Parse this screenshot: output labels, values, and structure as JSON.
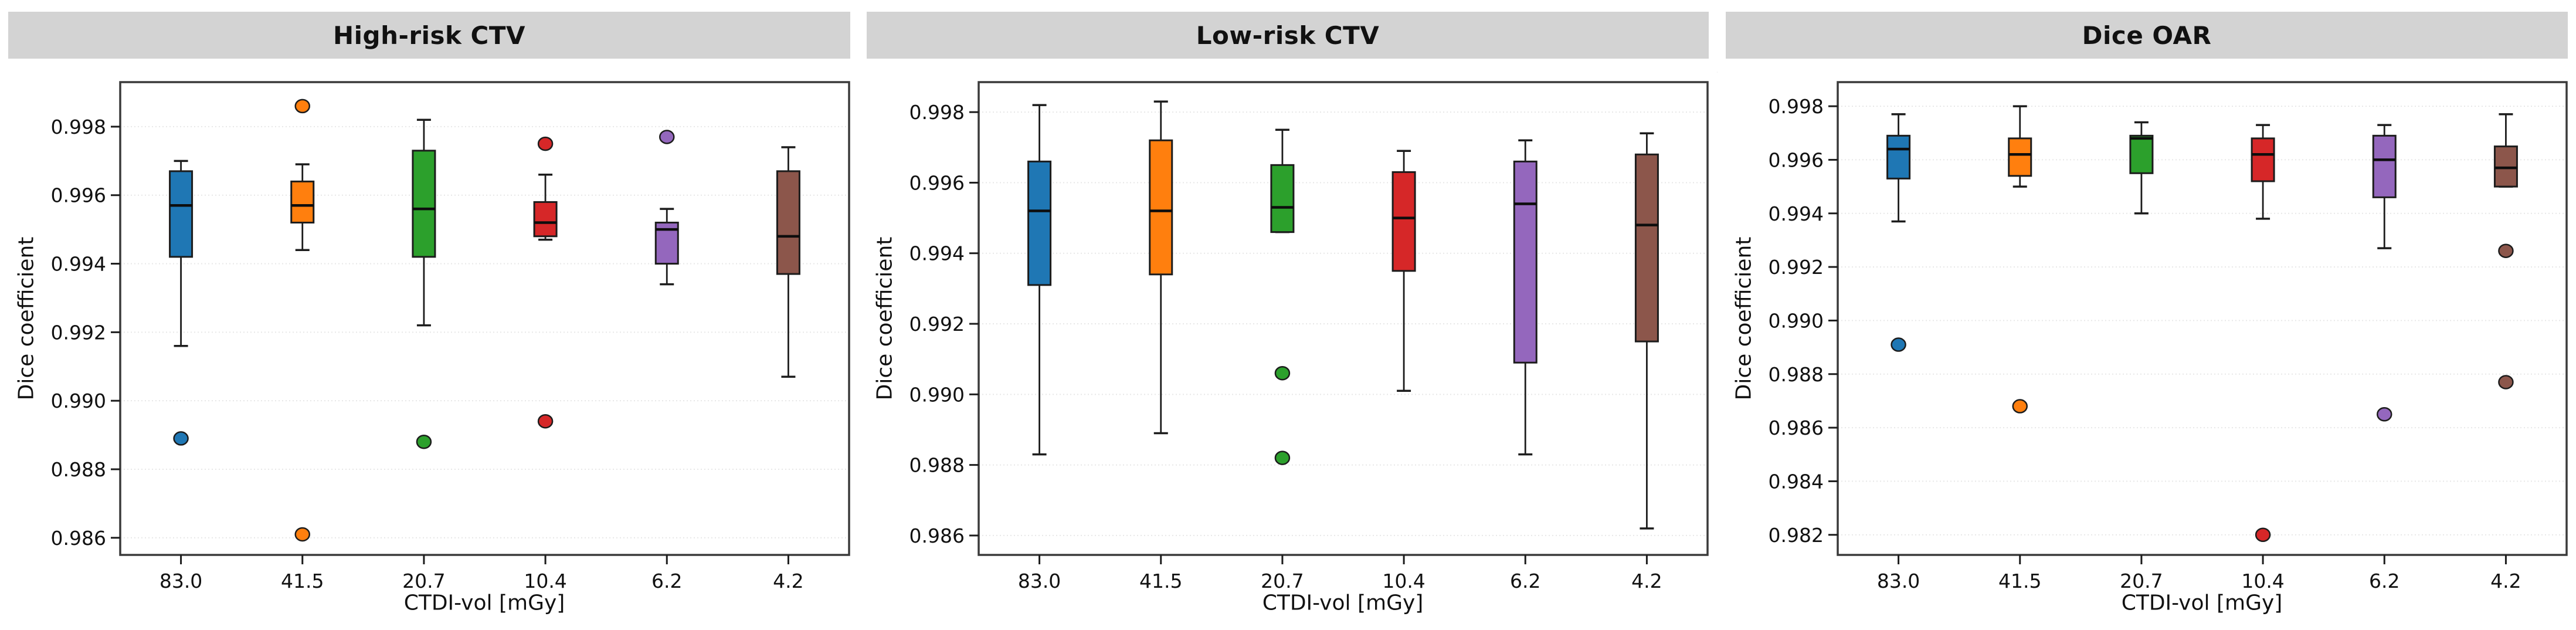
{
  "figure": {
    "background": "#ffffff",
    "strip_background": "#d3d3d3",
    "strip_text_color": "#111111",
    "spine_color": "#3a3a3a",
    "grid_color": "#e7e7e7",
    "tick_color": "#1c1c1c",
    "text_color": "#111111",
    "box_edge_color": "#1c1c1c",
    "median_color": "#0d0d0d"
  },
  "chart_data": [
    {
      "type": "boxplot",
      "title": "High-risk CTV",
      "xlabel": "CTDI-vol [mGy]",
      "ylabel": "Dice coefficient",
      "grid": true,
      "legend_position": "none",
      "categories": [
        "83.0",
        "41.5",
        "20.7",
        "10.4",
        "6.2",
        "4.2"
      ],
      "yticks": [
        0.998,
        0.996,
        0.994,
        0.992,
        0.99,
        0.988,
        0.986
      ],
      "ylim": [
        0.9855,
        0.9993
      ],
      "series": [
        {
          "label": "83.0",
          "color": "#1f77b4",
          "whislo": 0.9916,
          "q1": 0.9942,
          "med": 0.9957,
          "q3": 0.9967,
          "whishi": 0.997,
          "fliers": [
            0.9889
          ]
        },
        {
          "label": "41.5",
          "color": "#ff7f0e",
          "whislo": 0.9944,
          "q1": 0.9952,
          "med": 0.9957,
          "q3": 0.9964,
          "whishi": 0.9969,
          "fliers": [
            0.9986,
            0.9861
          ]
        },
        {
          "label": "20.7",
          "color": "#2ca02c",
          "whislo": 0.9922,
          "q1": 0.9942,
          "med": 0.9956,
          "q3": 0.9973,
          "whishi": 0.9982,
          "fliers": [
            0.9888
          ]
        },
        {
          "label": "10.4",
          "color": "#d62728",
          "whislo": 0.9947,
          "q1": 0.9948,
          "med": 0.9952,
          "q3": 0.9958,
          "whishi": 0.9966,
          "fliers": [
            0.9975,
            0.9894
          ]
        },
        {
          "label": "6.2",
          "color": "#9467bd",
          "whislo": 0.9934,
          "q1": 0.994,
          "med": 0.995,
          "q3": 0.9952,
          "whishi": 0.9956,
          "fliers": [
            0.9977
          ]
        },
        {
          "label": "4.2",
          "color": "#8c564b",
          "whislo": 0.9907,
          "q1": 0.9937,
          "med": 0.9948,
          "q3": 0.9967,
          "whishi": 0.9974,
          "fliers": []
        }
      ]
    },
    {
      "type": "boxplot",
      "title": "Low-risk CTV",
      "xlabel": "CTDI-vol [mGy]",
      "ylabel": "Dice coefficient",
      "grid": true,
      "legend_position": "none",
      "categories": [
        "83.0",
        "41.5",
        "20.7",
        "10.4",
        "6.2",
        "4.2"
      ],
      "yticks": [
        0.998,
        0.996,
        0.994,
        0.992,
        0.99,
        0.988,
        0.986
      ],
      "ylim": [
        0.98545,
        0.99885
      ],
      "series": [
        {
          "label": "83.0",
          "color": "#1f77b4",
          "whislo": 0.9883,
          "q1": 0.9931,
          "med": 0.9952,
          "q3": 0.9966,
          "whishi": 0.9982,
          "fliers": []
        },
        {
          "label": "41.5",
          "color": "#ff7f0e",
          "whislo": 0.9889,
          "q1": 0.9934,
          "med": 0.9952,
          "q3": 0.9972,
          "whishi": 0.9983,
          "fliers": []
        },
        {
          "label": "20.7",
          "color": "#2ca02c",
          "whislo": 0.9946,
          "q1": 0.9946,
          "med": 0.9953,
          "q3": 0.9965,
          "whishi": 0.9975,
          "fliers": [
            0.9906,
            0.9882
          ]
        },
        {
          "label": "10.4",
          "color": "#d62728",
          "whislo": 0.9901,
          "q1": 0.9935,
          "med": 0.995,
          "q3": 0.9963,
          "whishi": 0.9969,
          "fliers": []
        },
        {
          "label": "6.2",
          "color": "#9467bd",
          "whislo": 0.9883,
          "q1": 0.9909,
          "med": 0.9954,
          "q3": 0.9966,
          "whishi": 0.9972,
          "fliers": []
        },
        {
          "label": "4.2",
          "color": "#8c564b",
          "whislo": 0.9862,
          "q1": 0.9915,
          "med": 0.9948,
          "q3": 0.9968,
          "whishi": 0.9974,
          "fliers": []
        }
      ]
    },
    {
      "type": "boxplot",
      "title": "Dice OAR",
      "xlabel": "CTDI-vol [mGy]",
      "ylabel": "Dice coefficient",
      "grid": true,
      "legend_position": "none",
      "categories": [
        "83.0",
        "41.5",
        "20.7",
        "10.4",
        "6.2",
        "4.2"
      ],
      "yticks": [
        0.998,
        0.996,
        0.994,
        0.992,
        0.99,
        0.988,
        0.986,
        0.984,
        0.982
      ],
      "ylim": [
        0.98125,
        0.9989
      ],
      "series": [
        {
          "label": "83.0",
          "color": "#1f77b4",
          "whislo": 0.9937,
          "q1": 0.9953,
          "med": 0.9964,
          "q3": 0.9969,
          "whishi": 0.9977,
          "fliers": [
            0.9891
          ]
        },
        {
          "label": "41.5",
          "color": "#ff7f0e",
          "whislo": 0.995,
          "q1": 0.9954,
          "med": 0.9962,
          "q3": 0.9968,
          "whishi": 0.998,
          "fliers": [
            0.9868
          ]
        },
        {
          "label": "20.7",
          "color": "#2ca02c",
          "whislo": 0.994,
          "q1": 0.9955,
          "med": 0.9968,
          "q3": 0.9969,
          "whishi": 0.9974,
          "fliers": []
        },
        {
          "label": "10.4",
          "color": "#d62728",
          "whislo": 0.9938,
          "q1": 0.9952,
          "med": 0.9962,
          "q3": 0.9968,
          "whishi": 0.9973,
          "fliers": [
            0.982
          ]
        },
        {
          "label": "6.2",
          "color": "#9467bd",
          "whislo": 0.9927,
          "q1": 0.9946,
          "med": 0.996,
          "q3": 0.9969,
          "whishi": 0.9973,
          "fliers": [
            0.9865
          ]
        },
        {
          "label": "4.2",
          "color": "#8c564b",
          "whislo": 0.995,
          "q1": 0.995,
          "med": 0.9957,
          "q3": 0.9965,
          "whishi": 0.9977,
          "fliers": [
            0.9926,
            0.9877
          ]
        }
      ]
    }
  ]
}
